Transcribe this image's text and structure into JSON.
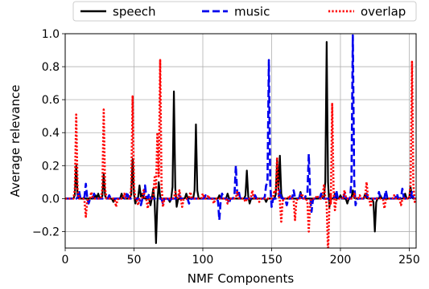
{
  "chart_data": {
    "type": "line",
    "title": "",
    "xlabel": "NMF Components",
    "ylabel": "Average relevance",
    "xlim": [
      0,
      255
    ],
    "ylim": [
      -0.3,
      1.0
    ],
    "grid": true,
    "legend": {
      "placement": "top",
      "columns": 3
    },
    "x_ticks": [
      0,
      50,
      100,
      150,
      200,
      250
    ],
    "x_tick_labels": [
      "0",
      "50",
      "100",
      "150",
      "200",
      "250"
    ],
    "y_ticks": [
      -0.2,
      0.0,
      0.2,
      0.4,
      0.6,
      0.8,
      1.0
    ],
    "y_tick_labels": [
      "−0.2",
      "0.0",
      "0.2",
      "0.4",
      "0.6",
      "0.8",
      "1.0"
    ],
    "series": [
      {
        "name": "speech",
        "color": "#000000",
        "dash": "solid",
        "spikes": [
          [
            8,
            0.2
          ],
          [
            22,
            0.02
          ],
          [
            24,
            0.03
          ],
          [
            28,
            0.15
          ],
          [
            35,
            -0.02
          ],
          [
            41,
            0.03
          ],
          [
            49,
            0.24
          ],
          [
            51,
            -0.03
          ],
          [
            54,
            0.08
          ],
          [
            56,
            0.03
          ],
          [
            62,
            -0.04
          ],
          [
            64,
            0.06
          ],
          [
            66,
            -0.27
          ],
          [
            68,
            0.1
          ],
          [
            76,
            -0.02
          ],
          [
            79,
            0.65
          ],
          [
            81,
            -0.05
          ],
          [
            88,
            0.03
          ],
          [
            95,
            0.45
          ],
          [
            112,
            0.02
          ],
          [
            118,
            0.03
          ],
          [
            132,
            0.17
          ],
          [
            134,
            -0.03
          ],
          [
            146,
            -0.02
          ],
          [
            154,
            0.23
          ],
          [
            156,
            0.26
          ],
          [
            171,
            0.04
          ],
          [
            186,
            0.03
          ],
          [
            190,
            0.95
          ],
          [
            192,
            -0.05
          ],
          [
            196,
            0.03
          ],
          [
            200,
            0.02
          ],
          [
            205,
            -0.03
          ],
          [
            209,
            0.05
          ],
          [
            218,
            0.03
          ],
          [
            225,
            -0.2
          ],
          [
            229,
            0.02
          ],
          [
            247,
            0.03
          ],
          [
            251,
            0.07
          ]
        ]
      },
      {
        "name": "music",
        "color": "#0000ee",
        "dash": "dashed",
        "spikes": [
          [
            10,
            0.05
          ],
          [
            15,
            0.09
          ],
          [
            17,
            -0.03
          ],
          [
            21,
            0.03
          ],
          [
            32,
            0.02
          ],
          [
            45,
            0.04
          ],
          [
            55,
            -0.04
          ],
          [
            58,
            0.08
          ],
          [
            61,
            0.03
          ],
          [
            71,
            -0.03
          ],
          [
            76,
            -0.02
          ],
          [
            83,
            0.02
          ],
          [
            90,
            -0.03
          ],
          [
            102,
            0.02
          ],
          [
            112,
            -0.13
          ],
          [
            114,
            0.03
          ],
          [
            119,
            -0.03
          ],
          [
            124,
            0.2
          ],
          [
            126,
            0.05
          ],
          [
            138,
            0.02
          ],
          [
            146,
            0.08
          ],
          [
            148,
            0.84
          ],
          [
            150,
            -0.05
          ],
          [
            156,
            0.05
          ],
          [
            161,
            -0.04
          ],
          [
            166,
            0.05
          ],
          [
            171,
            0.03
          ],
          [
            175,
            0.02
          ],
          [
            177,
            0.27
          ],
          [
            179,
            -0.08
          ],
          [
            186,
            0.03
          ],
          [
            197,
            0.05
          ],
          [
            203,
            0.03
          ],
          [
            209,
            0.99
          ],
          [
            211,
            -0.04
          ],
          [
            219,
            0.03
          ],
          [
            228,
            0.04
          ],
          [
            233,
            0.05
          ],
          [
            241,
            0.03
          ],
          [
            245,
            0.06
          ],
          [
            252,
            0.04
          ]
        ]
      },
      {
        "name": "overlap",
        "color": "#ff0000",
        "dash": "dotted",
        "spikes": [
          [
            8,
            0.51
          ],
          [
            15,
            -0.11
          ],
          [
            19,
            0.04
          ],
          [
            28,
            0.54
          ],
          [
            37,
            -0.05
          ],
          [
            43,
            0.03
          ],
          [
            49,
            0.62
          ],
          [
            53,
            -0.04
          ],
          [
            57,
            0.05
          ],
          [
            60,
            -0.06
          ],
          [
            65,
            0.13
          ],
          [
            67,
            0.4
          ],
          [
            69,
            0.84
          ],
          [
            71,
            -0.05
          ],
          [
            80,
            0.04
          ],
          [
            83,
            0.05
          ],
          [
            85,
            -0.05
          ],
          [
            91,
            0.04
          ],
          [
            100,
            0.03
          ],
          [
            104,
            0.02
          ],
          [
            108,
            -0.03
          ],
          [
            118,
            -0.03
          ],
          [
            125,
            0.04
          ],
          [
            131,
            -0.02
          ],
          [
            136,
            0.05
          ],
          [
            141,
            -0.02
          ],
          [
            152,
            0.05
          ],
          [
            154,
            0.25
          ],
          [
            157,
            -0.14
          ],
          [
            163,
            0.02
          ],
          [
            167,
            -0.13
          ],
          [
            172,
            0.03
          ],
          [
            177,
            -0.2
          ],
          [
            183,
            0.02
          ],
          [
            188,
            0.08
          ],
          [
            191,
            -0.33
          ],
          [
            193,
            -0.03
          ],
          [
            194,
            0.58
          ],
          [
            196,
            -0.07
          ],
          [
            203,
            0.05
          ],
          [
            210,
            0.03
          ],
          [
            214,
            0.02
          ],
          [
            219,
            0.1
          ],
          [
            222,
            -0.05
          ],
          [
            232,
            -0.06
          ],
          [
            239,
            0.02
          ],
          [
            244,
            -0.04
          ],
          [
            252,
            0.83
          ],
          [
            254,
            -0.02
          ]
        ]
      }
    ]
  }
}
